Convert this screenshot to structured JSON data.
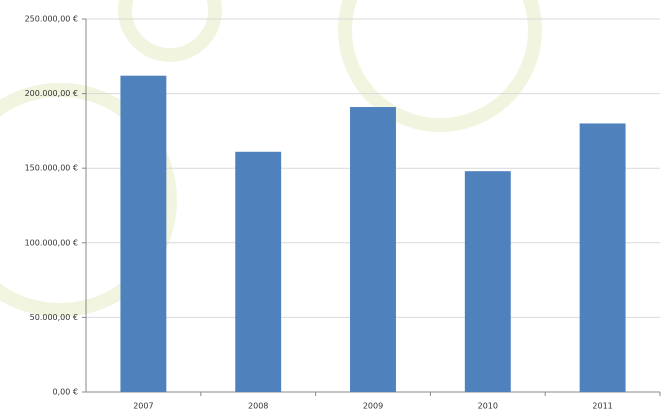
{
  "chart_data": {
    "type": "bar",
    "categories": [
      "2007",
      "2008",
      "2009",
      "2010",
      "2011"
    ],
    "values": [
      212000,
      161000,
      191000,
      148000,
      180000
    ],
    "color": "#4f81bd",
    "ylim": [
      0,
      250000
    ],
    "yticks": [
      {
        "value": 0,
        "label": "0,00 €"
      },
      {
        "value": 50000,
        "label": "50.000,00 €"
      },
      {
        "value": 100000,
        "label": "100.000,00 €"
      },
      {
        "value": 150000,
        "label": "150.000,00 €"
      },
      {
        "value": 200000,
        "label": "200.000,00 €"
      },
      {
        "value": 250000,
        "label": "250.000,00 €"
      }
    ],
    "grid": true
  }
}
